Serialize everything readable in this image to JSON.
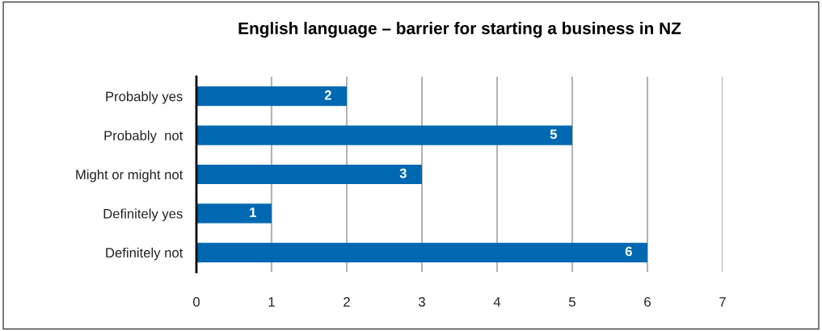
{
  "chart_data": {
    "type": "bar",
    "orientation": "horizontal",
    "title": "English language – barrier for starting a business in NZ",
    "categories": [
      "Probably yes",
      "Probably  not",
      "Might or might not",
      "Definitely yes",
      "Definitely not"
    ],
    "values": [
      2,
      5,
      3,
      1,
      6
    ],
    "color": "#0068b1",
    "xlim": [
      0,
      7
    ],
    "xticks": [
      0,
      1,
      2,
      3,
      4,
      5,
      6,
      7
    ],
    "grid": "x",
    "data_labels": true
  }
}
